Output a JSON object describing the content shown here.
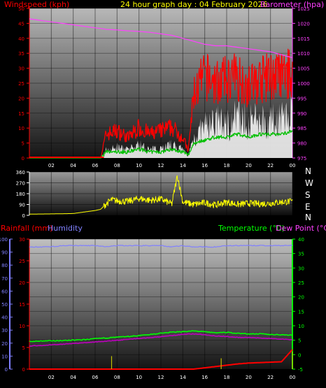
{
  "header": {
    "windspeed_label": "Windspeed (kph)",
    "title": "24 hour graph day : 04 February 2026",
    "barometer_label": "Barometer (hpa)"
  },
  "lower_header": {
    "rainfall_label": "Rainfall (mm)",
    "humidity_label": "Humidity",
    "temperature_label": "Temperature (°C)",
    "dewpoint_label": "Dew Point (°C)"
  },
  "compass": [
    "N",
    "W",
    "S",
    "E",
    "N"
  ],
  "colors": {
    "windspeed": "#ff0000",
    "gust_fill": "#ffffff",
    "average_wind": "#00c000",
    "barometer": "#ff40ff",
    "direction": "#ffff00",
    "rainfall": "#ff0000",
    "rain_rate": "#c0c000",
    "humidity": "#8080ff",
    "temperature": "#00ff00",
    "dewpoint": "#c000c0",
    "title": "#ffff00",
    "wind_axis": "#ff0000",
    "baro_axis": "#ff40ff",
    "temp_axis": "#00ff00",
    "humidity_axis": "#8080ff",
    "rain_axis": "#ff0000"
  },
  "chart_data": [
    {
      "type": "line",
      "name": "wind-barometer",
      "x_ticks": [
        "02",
        "04",
        "06",
        "08",
        "10",
        "12",
        "14",
        "16",
        "18",
        "20",
        "22",
        "00"
      ],
      "y_left_label": "Windspeed (kph)",
      "y_left_ticks": [
        0,
        5,
        10,
        15,
        20,
        25,
        30,
        35,
        40,
        45,
        50
      ],
      "y_left_range": [
        0,
        50
      ],
      "y_right_label": "Barometer (hpa)",
      "y_right_ticks": [
        975,
        980,
        985,
        990,
        995,
        1000,
        1005,
        1010,
        1015,
        1020,
        1025
      ],
      "y_right_range": [
        975,
        1025
      ],
      "hours": [
        0,
        1,
        2,
        3,
        4,
        5,
        6,
        6.5,
        7,
        8,
        9,
        10,
        11,
        12,
        13,
        14,
        14.5,
        15,
        16,
        17,
        18,
        19,
        20,
        21,
        22,
        23,
        24
      ],
      "series": [
        {
          "key": "barometer",
          "axis": "right",
          "values": [
            1021.5,
            1021,
            1020.5,
            1020,
            1019.5,
            1019,
            1018.5,
            1018.3,
            1018,
            1017.8,
            1017.5,
            1017.3,
            1017,
            1016.5,
            1016,
            1015,
            1014.5,
            1014,
            1013,
            1012.5,
            1012.5,
            1012,
            1011.5,
            1011,
            1010.5,
            1009.5,
            1008.5
          ]
        },
        {
          "key": "windspeed",
          "axis": "left",
          "values": [
            0,
            0,
            0,
            0,
            0,
            0,
            0,
            0,
            3,
            4,
            3,
            5,
            3,
            4,
            5,
            3,
            1,
            8,
            12,
            14,
            13,
            16,
            14,
            15,
            14,
            16,
            17
          ]
        },
        {
          "key": "gust",
          "axis": "left",
          "values": [
            0,
            0,
            0,
            0,
            0,
            0,
            0,
            0,
            7,
            8,
            6,
            9,
            7,
            8,
            9,
            6,
            2,
            19,
            24,
            22,
            23,
            24,
            21,
            23,
            24,
            24,
            25
          ]
        },
        {
          "key": "average_wind",
          "axis": "left",
          "values": [
            0,
            0,
            0,
            0,
            0,
            0,
            0,
            0,
            2,
            2,
            2,
            3,
            2,
            2,
            3,
            2,
            1,
            5,
            6,
            7,
            7,
            8,
            7,
            8,
            8,
            8,
            9
          ]
        }
      ]
    },
    {
      "type": "line",
      "name": "wind-direction",
      "y_ticks": [
        0,
        90,
        180,
        270,
        360
      ],
      "y_range": [
        0,
        360
      ],
      "hours": [
        0,
        2,
        4,
        6,
        6.5,
        7,
        7.5,
        8,
        9,
        10,
        11,
        12,
        13,
        13.5,
        14,
        14.5,
        15,
        16,
        17,
        18,
        19,
        20,
        21,
        22,
        23,
        24
      ],
      "values": [
        10,
        12,
        15,
        40,
        50,
        95,
        130,
        120,
        115,
        140,
        125,
        135,
        95,
        330,
        110,
        100,
        90,
        105,
        85,
        110,
        90,
        100,
        95,
        100,
        110,
        115
      ]
    },
    {
      "type": "line",
      "name": "rain-humidity-temperature",
      "x_ticks": [
        "02",
        "04",
        "06",
        "08",
        "10",
        "12",
        "14",
        "16",
        "18",
        "20",
        "22",
        "00"
      ],
      "y_rain_ticks": [
        0,
        5,
        10,
        15,
        20,
        25,
        30
      ],
      "y_rain_range": [
        0,
        30
      ],
      "y_humidity_ticks": [
        0,
        10,
        20,
        30,
        40,
        50,
        60,
        70,
        80,
        90,
        100
      ],
      "y_humidity_range": [
        0,
        100
      ],
      "y_temp_ticks": [
        -5,
        0,
        5,
        10,
        15,
        20,
        25,
        30,
        35,
        40
      ],
      "y_temp_range": [
        -5,
        40
      ],
      "hours": [
        0,
        1,
        2,
        3,
        4,
        5,
        6,
        7,
        8,
        9,
        10,
        11,
        12,
        13,
        14,
        15,
        16,
        17,
        18,
        19,
        20,
        21,
        22,
        23,
        24
      ],
      "series": [
        {
          "key": "humidity",
          "values": [
            94,
            94,
            94,
            95,
            95,
            95,
            95,
            94,
            95,
            95,
            95,
            95,
            95,
            94,
            95,
            94,
            94,
            94,
            95,
            95,
            95,
            95,
            95,
            95,
            95
          ]
        },
        {
          "key": "temperature",
          "values": [
            4.6,
            4.7,
            4.8,
            4.9,
            5.0,
            5.2,
            5.5,
            5.8,
            6.0,
            6.3,
            6.6,
            7.0,
            7.4,
            7.8,
            8.0,
            8.2,
            7.9,
            7.6,
            7.7,
            7.4,
            7.2,
            7.2,
            7.0,
            6.9,
            6.8
          ]
        },
        {
          "key": "dewpoint",
          "values": [
            3.0,
            3.2,
            3.4,
            3.6,
            3.9,
            4.1,
            4.4,
            4.7,
            5.0,
            5.3,
            5.6,
            5.9,
            6.2,
            6.6,
            7.0,
            7.2,
            6.9,
            6.5,
            6.3,
            6.0,
            5.9,
            5.8,
            5.6,
            5.4,
            5.2
          ]
        },
        {
          "key": "rainfall",
          "values": [
            0,
            0,
            0,
            0,
            0,
            0,
            0,
            0,
            0,
            0,
            0,
            0,
            0,
            0,
            0,
            0,
            0.3,
            0.6,
            0.9,
            1.2,
            1.4,
            1.5,
            1.6,
            1.7,
            4.5
          ]
        },
        {
          "key": "rain_rate_spikes",
          "hours": [
            7.5,
            17.5,
            24
          ],
          "values": [
            3.0,
            2.5,
            4.0
          ]
        }
      ]
    }
  ]
}
